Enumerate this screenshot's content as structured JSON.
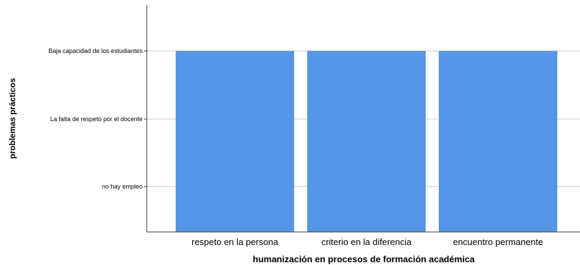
{
  "chart_data": {
    "type": "bar",
    "categories": [
      "respeto en la persona",
      "criterio en la diferencia",
      "encuentro permanente"
    ],
    "y_categories": [
      "no hay empleo",
      "La falta de respeto por el docente",
      "Baja capacidad de los estudiantes"
    ],
    "values": [
      "Baja capacidad de los estudiantes",
      "Baja capacidad de los estudiantes",
      "Baja capacidad de los estudiantes"
    ],
    "xlabel": "humanización en procesos de formación académica",
    "ylabel": "problemas prácticos",
    "grid": true,
    "bar_color": "#5596e6",
    "grid_color": "#c8c8c8"
  }
}
